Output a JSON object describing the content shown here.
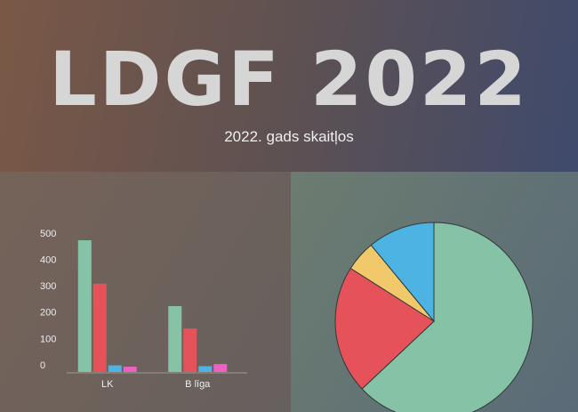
{
  "header": {
    "title": "LDGF 2022",
    "subtitle": "2022. gads skaitļos"
  },
  "chart_data": [
    {
      "type": "bar",
      "categories": [
        "LK",
        "B līga"
      ],
      "series": [
        {
          "color": "#86c2a6",
          "values": [
            500,
            250
          ]
        },
        {
          "color": "#e5525a",
          "values": [
            335,
            165
          ]
        },
        {
          "color": "#4db3e3",
          "values": [
            25,
            22
          ]
        },
        {
          "color": "#f060c0",
          "values": [
            20,
            30
          ]
        }
      ],
      "ylim": [
        0,
        500
      ],
      "yticks": [
        0,
        100,
        200,
        300,
        400,
        500
      ]
    },
    {
      "type": "pie",
      "values": [
        63,
        21,
        5,
        11
      ],
      "colors": [
        "#86c2a6",
        "#e5525a",
        "#f2c96a",
        "#4db3e3"
      ]
    }
  ]
}
